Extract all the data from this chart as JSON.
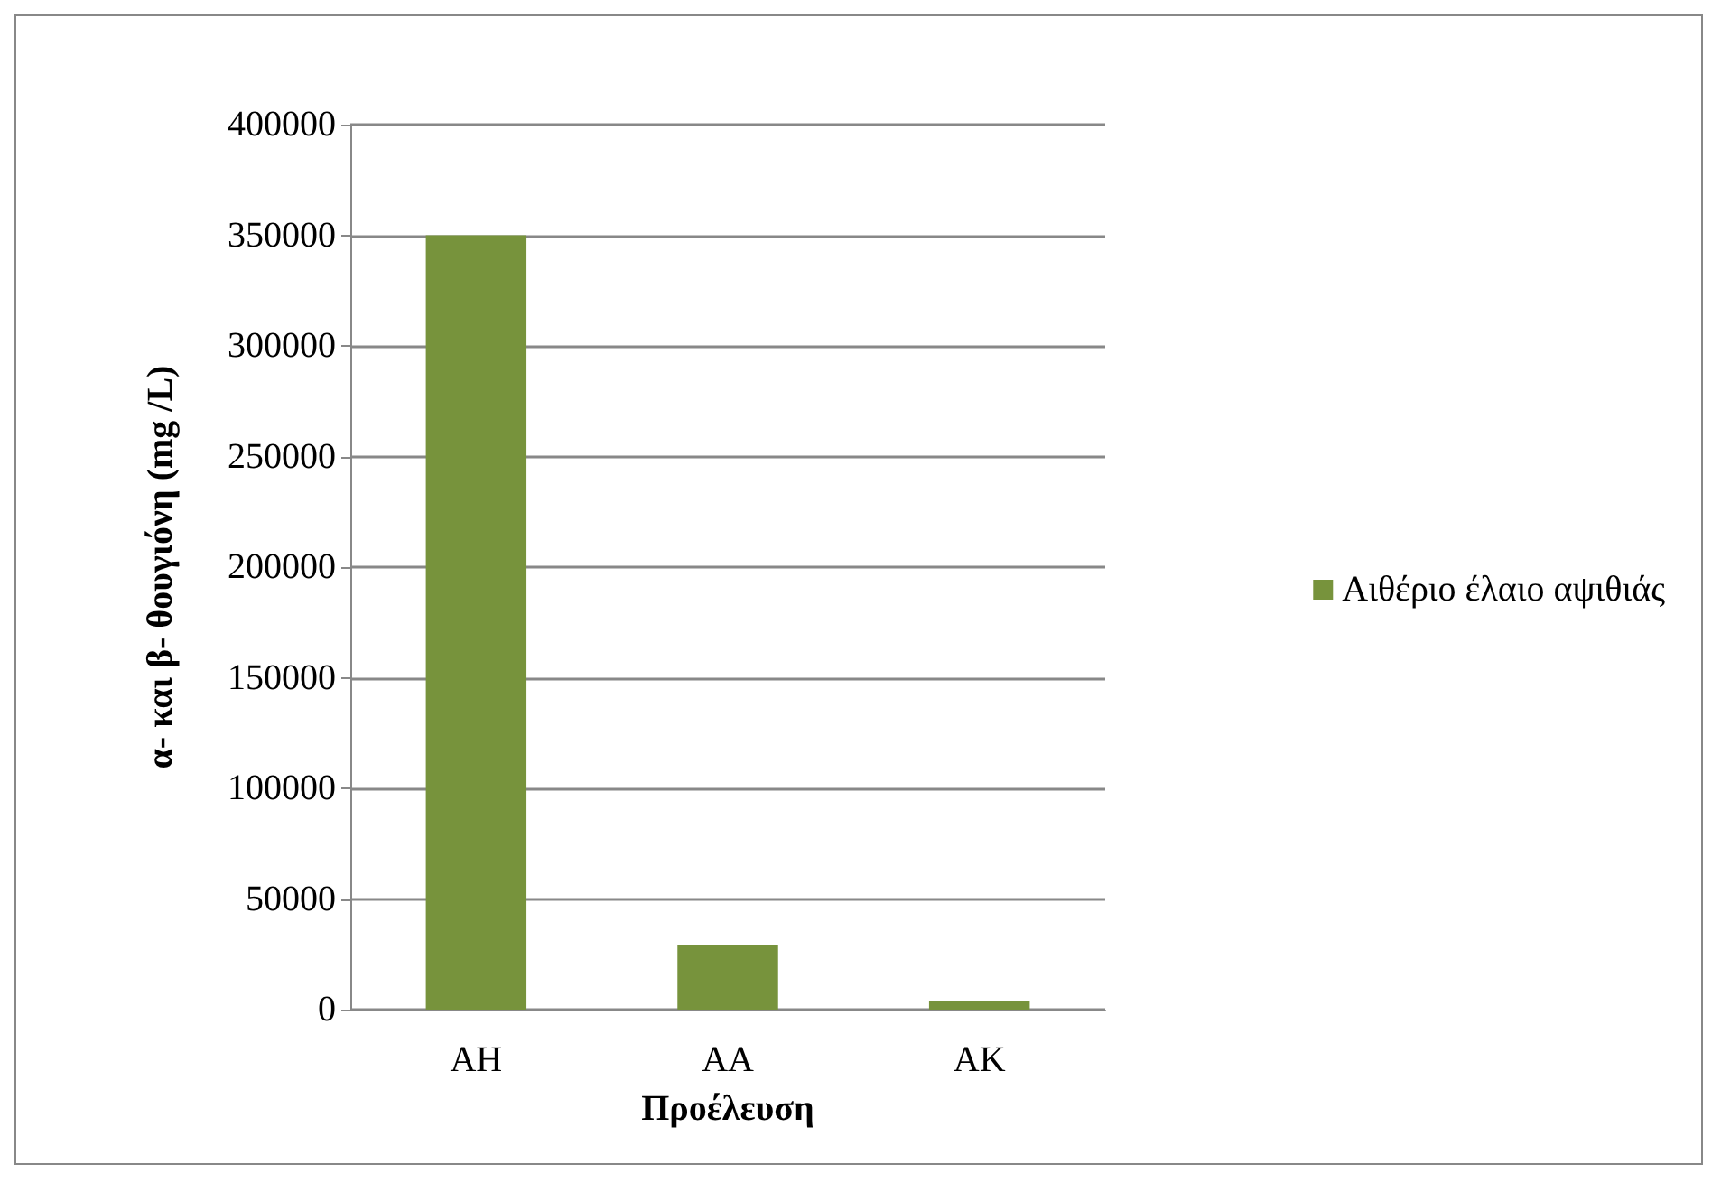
{
  "chart_data": {
    "type": "bar",
    "xlabel": "Προέλευση",
    "ylabel": "α- και β- θουγιόνη (mg /L)",
    "categories": [
      "AH",
      "AA",
      "AK"
    ],
    "series": [
      {
        "name": "Αιθέριο έλαιο αψιθιάς",
        "color": "#77933c",
        "values": [
          350000,
          29000,
          3700
        ]
      }
    ],
    "ylim": [
      0,
      400000
    ],
    "yticks": [
      0,
      50000,
      100000,
      150000,
      200000,
      250000,
      300000,
      350000,
      400000
    ],
    "grid": "y",
    "legend": "right"
  }
}
